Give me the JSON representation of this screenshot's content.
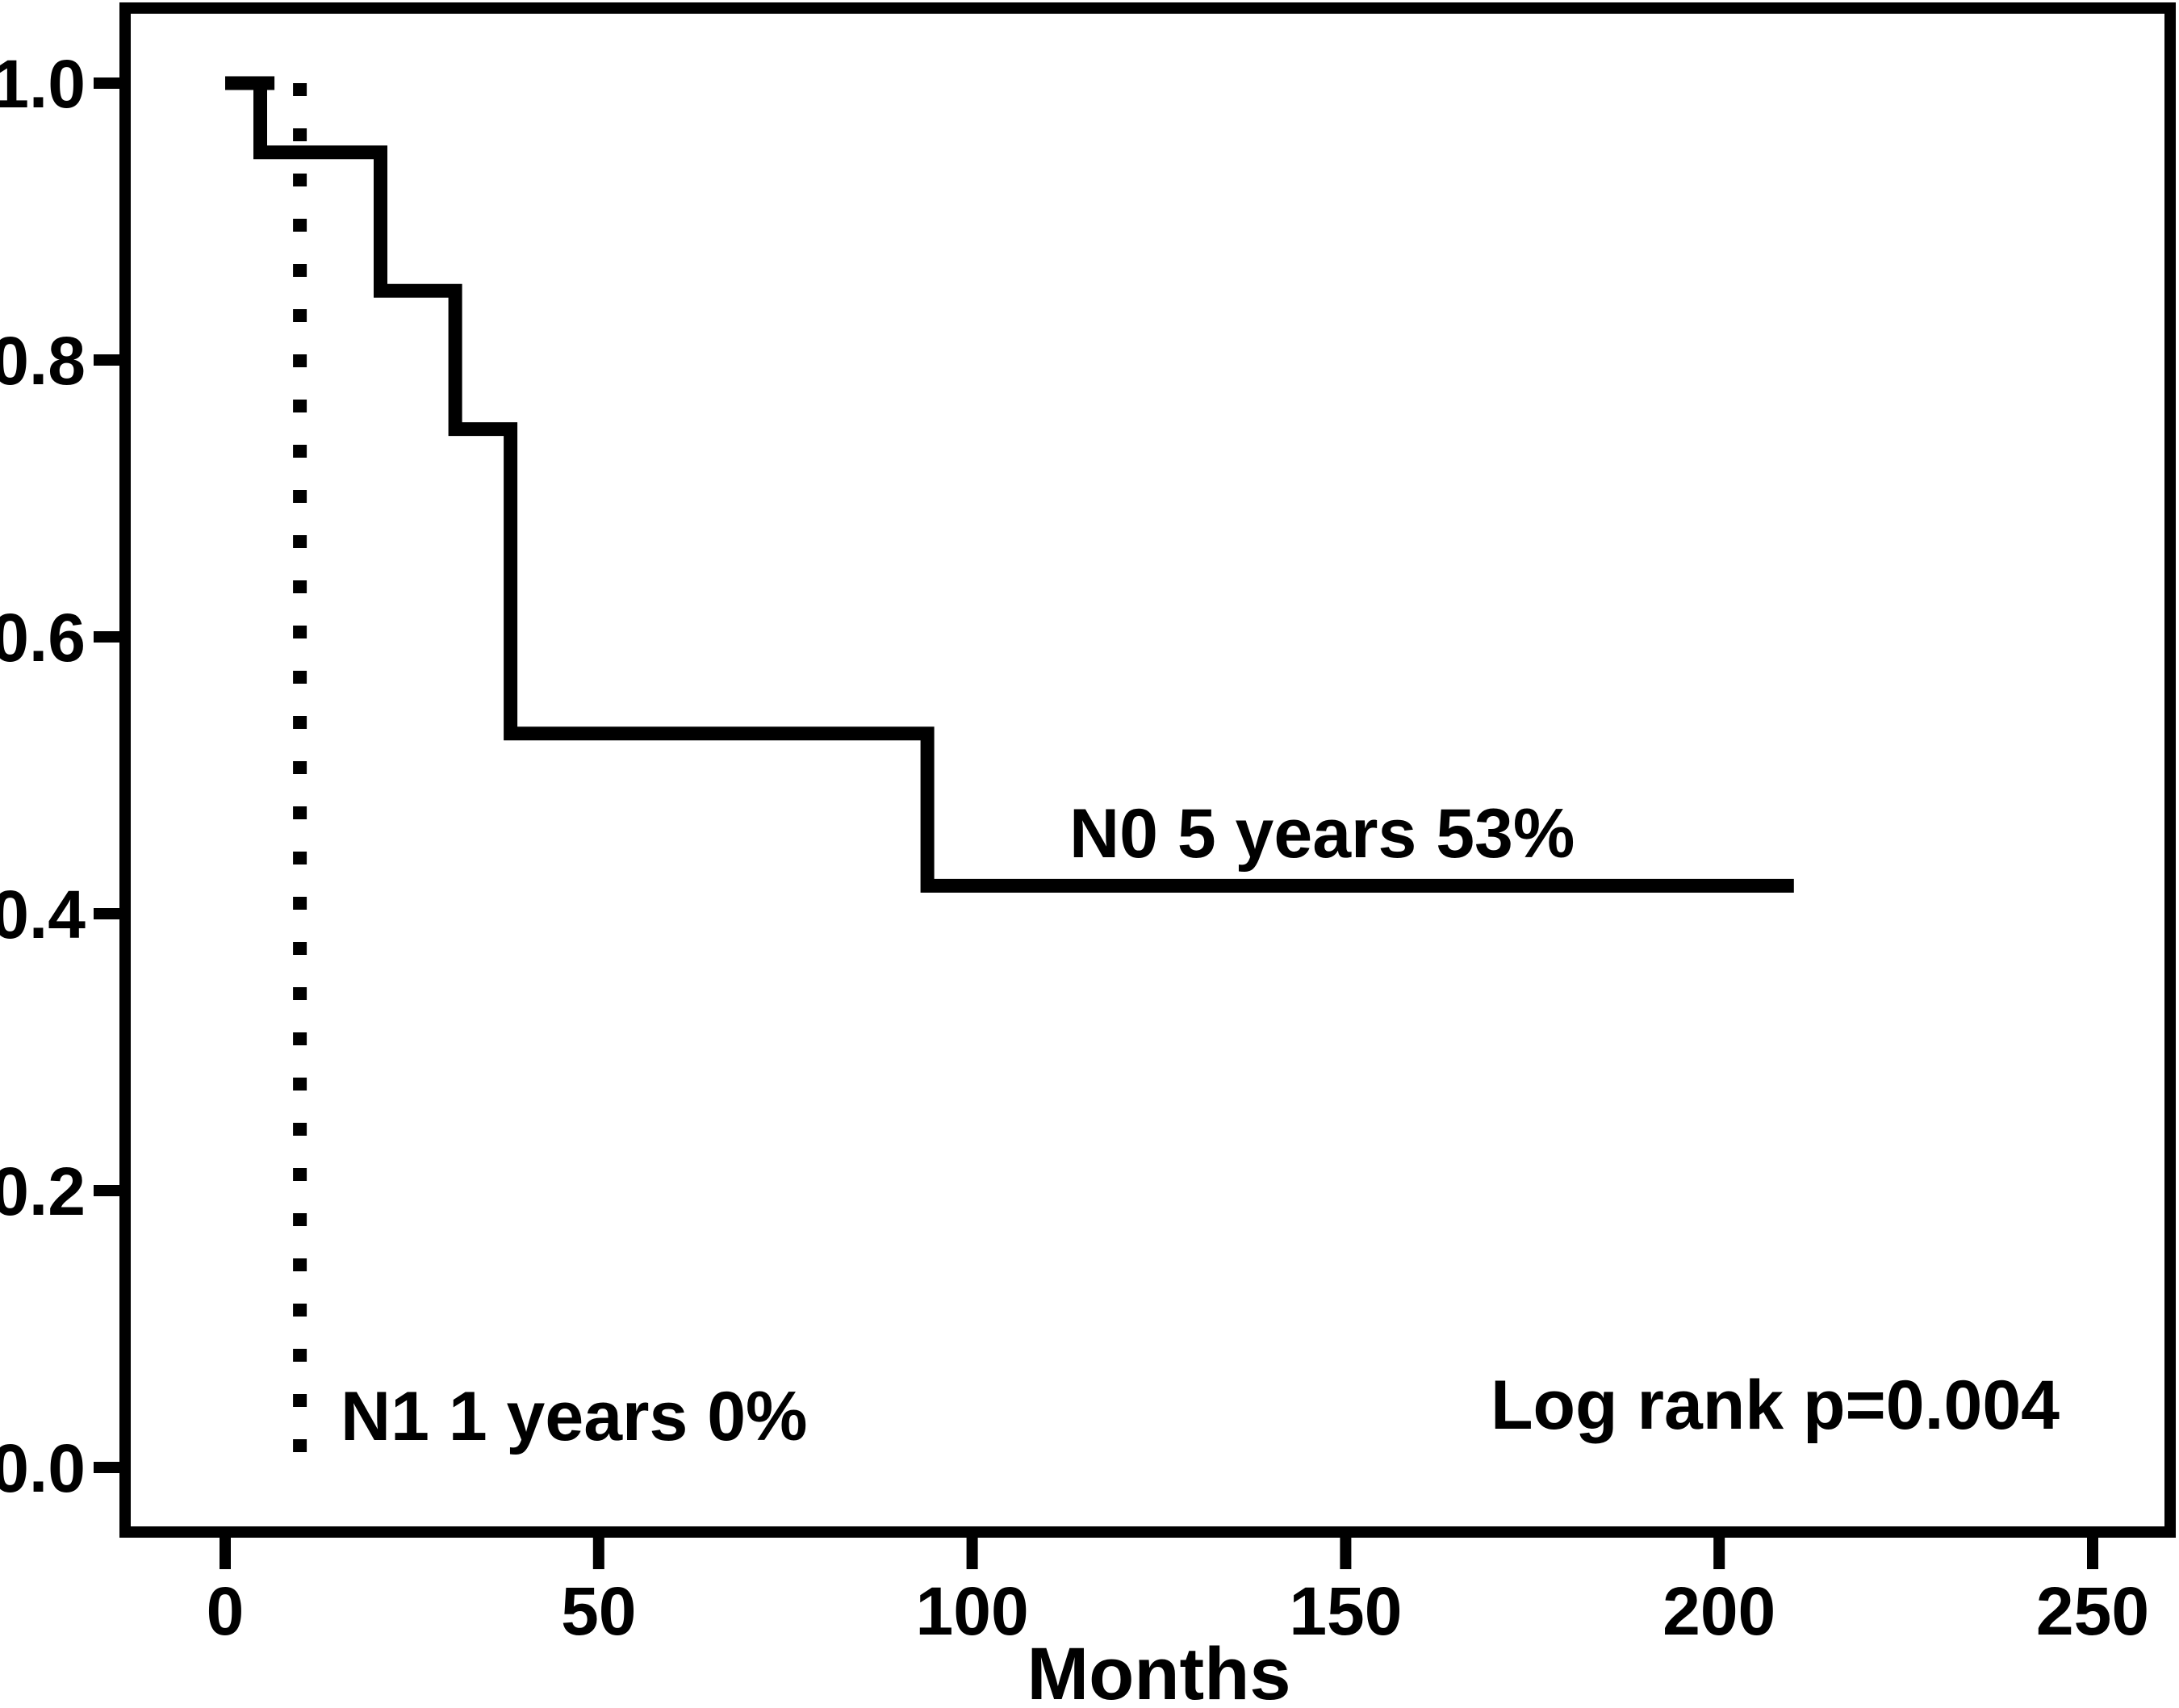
{
  "colors": {
    "foreground": "#000000",
    "background": "#ffffff"
  },
  "chart_data": {
    "type": "line",
    "subtype": "kaplan-meier-step-curve",
    "title": "",
    "xlabel": "Months",
    "ylabel": "",
    "x_ticks": [
      "0",
      "50",
      "100",
      "150",
      "200",
      "250"
    ],
    "y_ticks": [
      "1.0",
      "0.8",
      "0.6",
      "0.4",
      "0.2",
      "0.0"
    ],
    "xlim": [
      -13.5,
      260.5
    ],
    "ylim": [
      -0.05,
      1.05
    ],
    "grid": false,
    "legend": "none",
    "series": [
      {
        "name": "N0",
        "line_style": "solid",
        "points": [
          [
            0,
            1.0
          ],
          [
            4.7,
            1.0
          ],
          [
            4.7,
            0.95
          ],
          [
            20.8,
            0.95
          ],
          [
            20.8,
            0.85
          ],
          [
            30.8,
            0.85
          ],
          [
            30.8,
            0.75
          ],
          [
            38.2,
            0.75
          ],
          [
            38.2,
            0.53
          ],
          [
            94,
            0.53
          ],
          [
            94,
            0.42
          ],
          [
            210,
            0.42
          ]
        ]
      },
      {
        "name": "N1",
        "line_style": "dotted",
        "points": [
          [
            10,
            1.0
          ],
          [
            10,
            0.0
          ]
        ]
      }
    ],
    "censor_ticks": [
      {
        "series": "N0",
        "x1": 4.7,
        "x2": 6.6,
        "y": 1.0
      }
    ],
    "annotations": [
      {
        "id": "n0-label",
        "text": "N0 5 years 53%",
        "x": 113,
        "y": 0.458,
        "anchor": "start"
      },
      {
        "id": "n1-label",
        "text": "N1 1 years 0%",
        "x": 15.5,
        "y": 0.037,
        "anchor": "start"
      },
      {
        "id": "logrank-label",
        "text": "Log rank p=0.004",
        "x": 245.6,
        "y": 0.045,
        "anchor": "end"
      }
    ]
  }
}
